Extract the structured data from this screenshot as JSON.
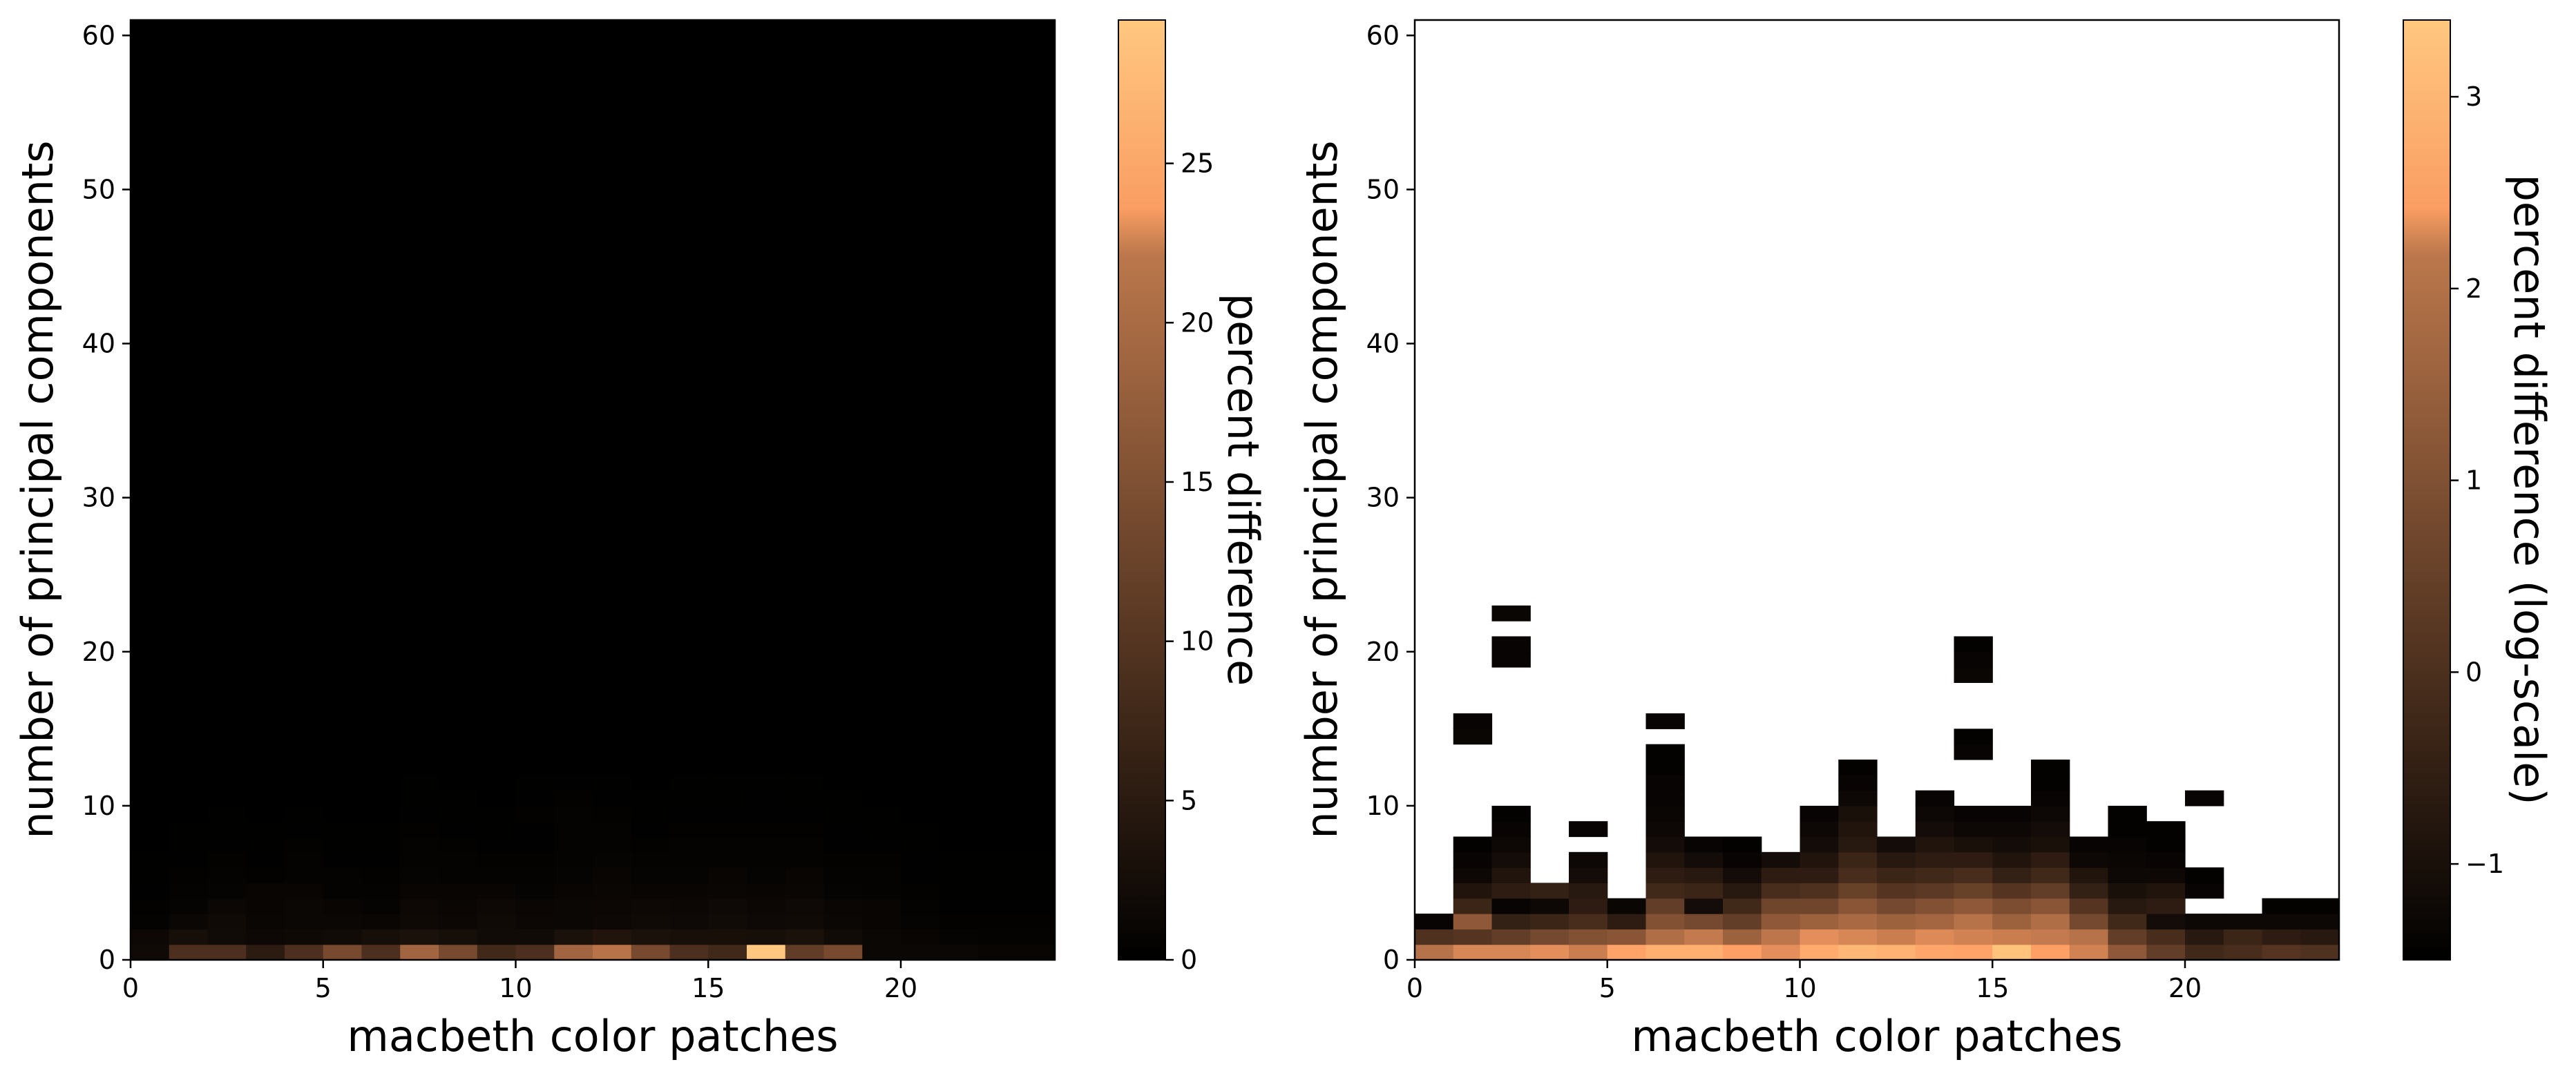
{
  "chart_data": [
    {
      "type": "heatmap",
      "title": "",
      "xlabel": "macbeth color patches",
      "ylabel": "number of principal components",
      "xlim": [
        0,
        24
      ],
      "ylim": [
        0,
        61
      ],
      "x_ticks": [
        0,
        5,
        10,
        15,
        20
      ],
      "y_ticks": [
        0,
        10,
        20,
        30,
        40,
        50,
        60
      ],
      "colorbar": {
        "label": "percent difference",
        "colormap": "copper",
        "range": [
          0,
          29.5
        ],
        "ticks": [
          0,
          5,
          10,
          15,
          20,
          25
        ]
      },
      "cells_x": 24,
      "cells_y": 61,
      "rows_shown": [
        [
          1.5,
          7,
          7,
          4,
          7,
          11,
          7,
          15,
          11,
          6,
          7,
          15,
          17,
          11,
          7,
          6,
          29.5,
          9,
          11,
          1,
          1,
          1,
          0.8,
          0.8
        ],
        [
          1.2,
          2,
          1.6,
          1.2,
          1.4,
          1.6,
          2,
          2.5,
          2,
          1.6,
          1.6,
          2.5,
          3,
          2.5,
          2.2,
          2.2,
          2,
          2.5,
          1.6,
          1,
          0.8,
          0.6,
          0.5,
          0.5
        ],
        [
          0.5,
          1,
          1.5,
          0.9,
          1,
          1,
          0.9,
          1.4,
          1.1,
          1.5,
          1.1,
          1,
          1.2,
          1.5,
          1.3,
          1.6,
          1.3,
          1.5,
          1,
          0.8,
          0.6,
          0.3,
          0.3,
          0.3
        ],
        [
          0.3,
          0.6,
          1,
          0.8,
          1,
          0.8,
          0.6,
          1.2,
          0.9,
          1.2,
          0.9,
          1,
          1.1,
          1.2,
          1.1,
          1.3,
          1.1,
          1.3,
          0.9,
          0.7,
          0.5,
          0.2,
          0.2,
          0.2
        ],
        [
          0.2,
          0.4,
          0.6,
          0.7,
          0.7,
          0.5,
          0.4,
          0.8,
          0.7,
          0.7,
          0.6,
          0.8,
          0.9,
          0.8,
          0.8,
          0.9,
          0.8,
          0.9,
          0.6,
          0.5,
          0.3,
          0.1,
          0.1,
          0.1
        ],
        [
          0.1,
          0.3,
          0.4,
          0.3,
          0.5,
          0.4,
          0.3,
          0.6,
          0.5,
          0.5,
          0.4,
          0.6,
          0.7,
          0.6,
          0.6,
          0.7,
          0.6,
          0.7,
          0.4,
          0.4,
          0.2,
          0.1,
          0.1,
          0.1
        ],
        [
          0.1,
          0.2,
          0.3,
          0.2,
          0.4,
          0.2,
          0.2,
          0.5,
          0.4,
          0.3,
          0.3,
          0.5,
          0.6,
          0.4,
          0.5,
          0.5,
          0.5,
          0.5,
          0.3,
          0.3,
          0.2,
          0.1,
          0.1,
          0.1
        ],
        [
          0,
          0.1,
          0.2,
          0.1,
          0.3,
          0.1,
          0.1,
          0.4,
          0.3,
          0.2,
          0.2,
          0.4,
          0.5,
          0.3,
          0.4,
          0.4,
          0.4,
          0.4,
          0.2,
          0.2,
          0.1,
          0,
          0,
          0
        ],
        [
          0,
          0.1,
          0.1,
          0.1,
          0.2,
          0.1,
          0.1,
          0.3,
          0.2,
          0.1,
          0.2,
          0.4,
          0.4,
          0.2,
          0.3,
          0.3,
          0.3,
          0.3,
          0.2,
          0.1,
          0.1,
          0,
          0,
          0
        ],
        [
          0,
          0,
          0.1,
          0,
          0.1,
          0,
          0,
          0.2,
          0.1,
          0.1,
          0.3,
          0.4,
          0.3,
          0.1,
          0.2,
          0.2,
          0.2,
          0.2,
          0.1,
          0.1,
          0,
          0,
          0,
          0
        ],
        [
          0,
          0,
          0,
          0,
          0,
          0,
          0,
          0.1,
          0.1,
          0,
          0.2,
          0.3,
          0.2,
          0.1,
          0.1,
          0.1,
          0.2,
          0.1,
          0.1,
          0,
          0,
          0,
          0,
          0
        ],
        [
          0,
          0,
          0,
          0,
          0,
          0,
          0,
          0.1,
          0,
          0,
          0.1,
          0.2,
          0.1,
          0,
          0.1,
          0.1,
          0.1,
          0.1,
          0,
          0,
          0,
          0,
          0,
          0
        ]
      ],
      "rows_above_value": 0
    },
    {
      "type": "heatmap",
      "title": "",
      "xlabel": "macbeth color patches",
      "ylabel": "number of principal components",
      "xlim": [
        0,
        24
      ],
      "ylim": [
        0,
        61
      ],
      "x_ticks": [
        0,
        5,
        10,
        15,
        20
      ],
      "y_ticks": [
        0,
        10,
        20,
        30,
        40,
        50,
        60
      ],
      "colorbar": {
        "label": "percent difference (log-scale)",
        "colormap": "copper",
        "range": [
          -1.5,
          3.4
        ],
        "ticks": [
          -1,
          0,
          1,
          2,
          3
        ]
      },
      "cells_x": 24,
      "cells_y": 61,
      "missing_value": null,
      "columns": [
        {
          "x": 0,
          "values": [
            1.3,
            -0.3,
            -1.4
          ]
        },
        {
          "x": 1,
          "values": [
            1.8,
            -0.2,
            0.7,
            -0.6,
            -1.0,
            -1.3,
            -1.4,
            -1.45,
            null,
            null,
            null,
            null,
            null,
            null,
            -1.35,
            -1.4
          ]
        },
        {
          "x": 2,
          "values": [
            1.8,
            0.0,
            -0.7,
            -1.4,
            -0.8,
            -1.0,
            -1.2,
            -1.3,
            -1.4,
            -1.45,
            null,
            null,
            null,
            null,
            null,
            null,
            null,
            null,
            null,
            -1.4,
            -1.4,
            null,
            -1.35
          ]
        },
        {
          "x": 3,
          "values": [
            2.0,
            0.3,
            -0.6,
            -1.3,
            -0.7
          ]
        },
        {
          "x": 4,
          "values": [
            1.6,
            0.5,
            -0.4,
            -0.8,
            -0.9,
            -1.2,
            -1.3,
            null,
            -1.4
          ]
        },
        {
          "x": 5,
          "values": [
            2.5,
            0.6,
            -0.8,
            -1.35
          ]
        },
        {
          "x": 6,
          "values": [
            2.8,
            1.2,
            0.5,
            0.0,
            -0.5,
            -0.8,
            -1.0,
            -1.2,
            -1.3,
            -1.35,
            -1.4,
            -1.4,
            -1.45,
            -1.45,
            null,
            -1.4
          ]
        },
        {
          "x": 7,
          "values": [
            2.8,
            1.5,
            0.3,
            -1.2,
            -0.6,
            -0.9,
            -1.2,
            -1.4
          ]
        },
        {
          "x": 8,
          "values": [
            2.4,
            0.9,
            0.0,
            -0.5,
            -0.9,
            -1.2,
            -1.4,
            -1.45
          ]
        },
        {
          "x": 9,
          "values": [
            2.0,
            1.4,
            0.7,
            0.2,
            -0.4,
            -0.8,
            -1.2
          ]
        },
        {
          "x": 10,
          "values": [
            2.7,
            2.0,
            0.9,
            0.2,
            -0.3,
            -0.8,
            -1.0,
            -1.2,
            -1.3,
            -1.4
          ]
        },
        {
          "x": 11,
          "values": [
            3.0,
            1.8,
            1.1,
            0.6,
            0.1,
            -0.4,
            -0.6,
            -0.9,
            -1.0,
            -1.1,
            -1.3,
            -1.4,
            -1.45
          ]
        },
        {
          "x": 12,
          "values": [
            2.9,
            1.6,
            0.9,
            0.3,
            -0.2,
            -0.6,
            -0.9,
            -1.2
          ]
        },
        {
          "x": 13,
          "values": [
            2.6,
            1.9,
            1.0,
            0.5,
            -0.1,
            -0.5,
            -0.8,
            -1.0,
            -1.2,
            -1.3,
            -1.4
          ]
        },
        {
          "x": 14,
          "values": [
            2.5,
            1.7,
            1.3,
            0.7,
            0.1,
            -0.4,
            -0.8,
            -1.1,
            -1.3,
            -1.4,
            null,
            null,
            null,
            -1.4,
            -1.45,
            null,
            null,
            null,
            -1.35,
            -1.4,
            -1.45
          ]
        },
        {
          "x": 15,
          "values": [
            3.3,
            1.6,
            0.9,
            0.4,
            -0.2,
            -0.7,
            -1.0,
            -1.2,
            -1.3,
            -1.4
          ]
        },
        {
          "x": 16,
          "values": [
            2.4,
            1.5,
            1.2,
            0.6,
            0.0,
            -0.5,
            -0.8,
            -1.1,
            -1.2,
            -1.3,
            -1.4,
            -1.45,
            -1.45
          ]
        },
        {
          "x": 17,
          "values": [
            1.7,
            1.3,
            0.3,
            -0.2,
            -0.7,
            -1.0,
            -1.3,
            -1.4
          ]
        },
        {
          "x": 18,
          "values": [
            0.7,
            0.0,
            -0.5,
            -0.9,
            -1.1,
            -1.3,
            -1.35,
            -1.4,
            -1.45,
            -1.45
          ]
        },
        {
          "x": 19,
          "values": [
            0.0,
            -0.4,
            -1.2,
            -0.8,
            -1.0,
            -1.3,
            -1.4,
            -1.45,
            -1.45
          ]
        },
        {
          "x": 20,
          "values": [
            -0.5,
            -0.9,
            -1.3,
            null,
            -1.4,
            -1.45,
            null,
            null,
            null,
            null,
            -1.4
          ]
        },
        {
          "x": 21,
          "values": [
            -0.4,
            -0.6,
            -1.3
          ]
        },
        {
          "x": 22,
          "values": [
            -0.2,
            -0.8,
            -1.3,
            -1.45
          ]
        },
        {
          "x": 23,
          "values": [
            -0.3,
            -0.9,
            -1.3,
            -1.45
          ]
        }
      ]
    }
  ]
}
